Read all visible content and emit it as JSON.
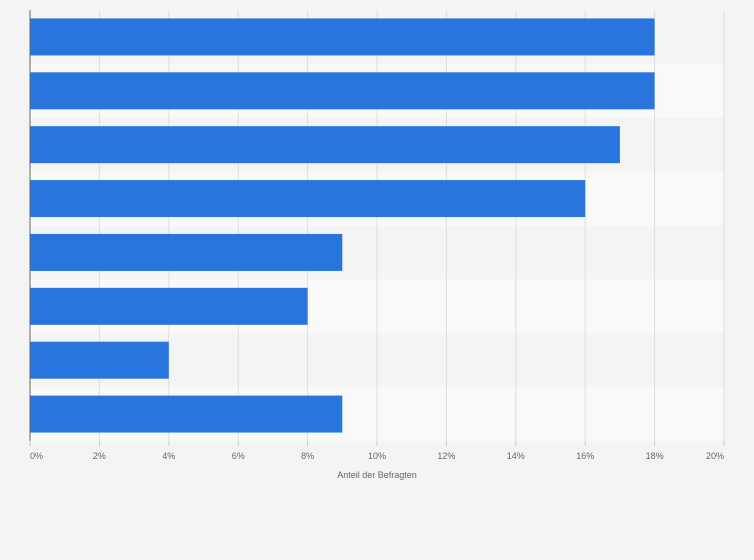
{
  "chart_data": {
    "type": "bar",
    "orientation": "horizontal",
    "categories": [
      "",
      "",
      "",
      "",
      "",
      "",
      "",
      ""
    ],
    "values": [
      18,
      18,
      17,
      16,
      9,
      8,
      4,
      9
    ],
    "value_unit": "%",
    "xlim": [
      0,
      20
    ],
    "xticks": [
      "0%",
      "2%",
      "4%",
      "6%",
      "8%",
      "10%",
      "12%",
      "14%",
      "16%",
      "18%",
      "20%"
    ],
    "xlabel": "Anteil der Befragten",
    "ylabel": "",
    "title": "",
    "grid": true,
    "legend": "none"
  },
  "colors": {
    "bar": "#2876dd",
    "background": "#f4f4f4",
    "band_light": "#f9f9f9",
    "grid": "#dedede",
    "axis": "#666666",
    "tick_text": "#666666"
  }
}
